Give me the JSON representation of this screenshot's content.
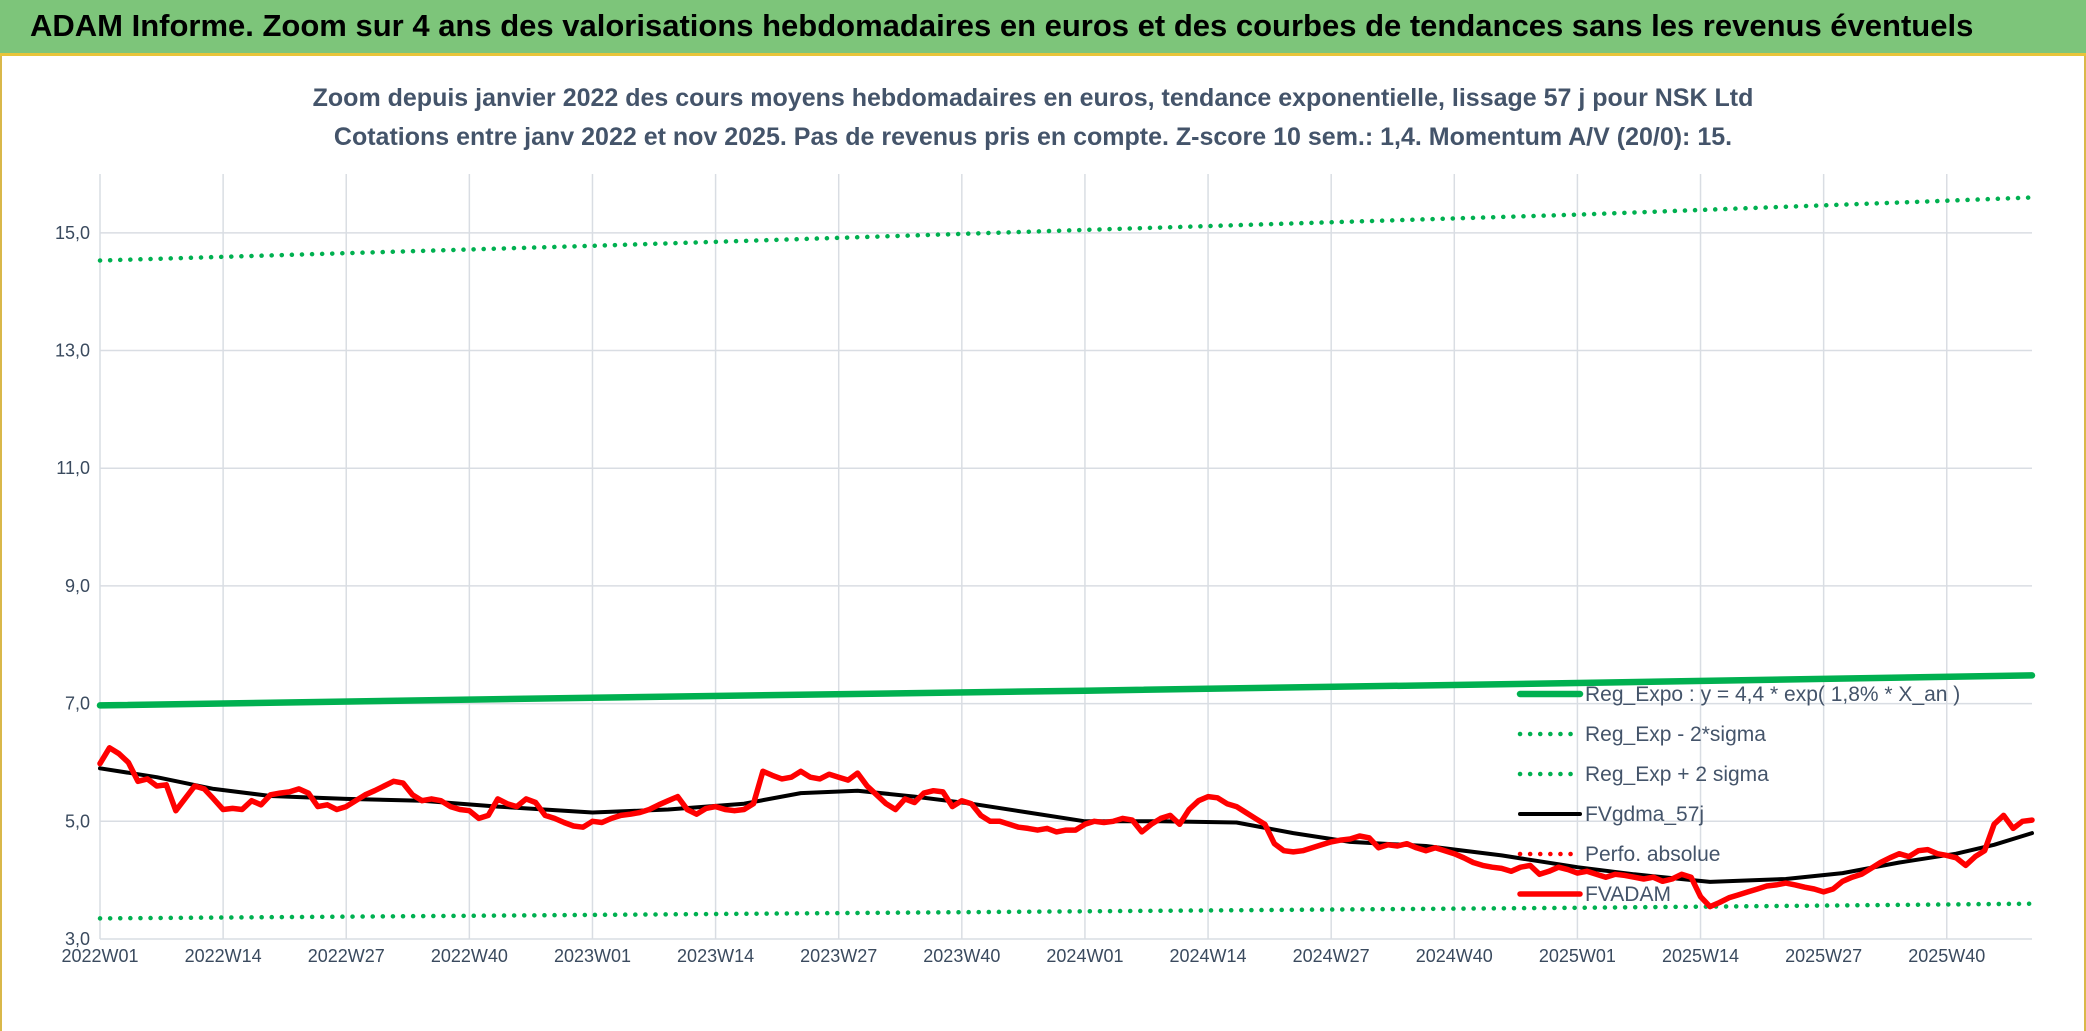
{
  "header": {
    "title": "ADAM Informe. Zoom sur 4 ans des valorisations hebdomadaires en euros et des courbes de tendances sans les revenus éventuels"
  },
  "colors": {
    "banner": "#7dc57a",
    "reg_expo": "#00b050",
    "fvgdma": "#000000",
    "fvadam": "#ff0000",
    "perfo": "#ff0000",
    "grid": "#d9dde3",
    "text": "#44546a"
  },
  "chart_data": {
    "type": "line",
    "title": "Zoom depuis janvier 2022 des cours moyens hebdomadaires en euros, tendance exponentielle, lissage 57 j pour NSK Ltd",
    "subtitle": "Cotations entre janv 2022 et nov 2025. Pas de revenus pris en compte. Z-score 10 sem.: 1,4. Momentum A/V (20/0): 15.",
    "xlabel": "",
    "ylabel": "",
    "ylim": [
      3.0,
      16.0
    ],
    "yticks": [
      "3,0",
      "5,0",
      "7,0",
      "9,0",
      "11,0",
      "13,0",
      "15,0"
    ],
    "ytick_values": [
      3,
      5,
      7,
      9,
      11,
      13,
      15
    ],
    "xticks": [
      "2022W01",
      "2022W14",
      "2022W27",
      "2022W40",
      "2023W01",
      "2023W14",
      "2023W27",
      "2023W40",
      "2024W01",
      "2024W14",
      "2024W27",
      "2024W40",
      "2025W01",
      "2025W14",
      "2025W27",
      "2025W40"
    ],
    "xtick_weeks": [
      0,
      13,
      26,
      39,
      52,
      65,
      78,
      91,
      104,
      117,
      130,
      143,
      156,
      169,
      182,
      195
    ],
    "weeks_total": 204,
    "grid": true,
    "legend_position": "right",
    "series": [
      {
        "name": "Reg_Expo : y = 4,4 * exp( 1,8% *  X_an )",
        "style": "solid-thick",
        "color": "#00b050",
        "points": [
          [
            0,
            6.97
          ],
          [
            52,
            7.1
          ],
          [
            104,
            7.22
          ],
          [
            156,
            7.35
          ],
          [
            204,
            7.48
          ]
        ]
      },
      {
        "name": "Reg_Exp - 2*sigma",
        "style": "dotted",
        "color": "#00b050",
        "points": [
          [
            0,
            3.35
          ],
          [
            52,
            3.41
          ],
          [
            104,
            3.47
          ],
          [
            156,
            3.53
          ],
          [
            204,
            3.6
          ]
        ]
      },
      {
        "name": "Reg_Exp + 2 sigma",
        "style": "dotted",
        "color": "#00b050",
        "points": [
          [
            0,
            14.53
          ],
          [
            52,
            14.78
          ],
          [
            104,
            15.05
          ],
          [
            156,
            15.31
          ],
          [
            204,
            15.6
          ]
        ]
      },
      {
        "name": "FVgdma_57j",
        "style": "solid",
        "color": "#000000",
        "points": [
          [
            0,
            5.9
          ],
          [
            6,
            5.75
          ],
          [
            12,
            5.55
          ],
          [
            18,
            5.43
          ],
          [
            26,
            5.38
          ],
          [
            34,
            5.35
          ],
          [
            42,
            5.25
          ],
          [
            52,
            5.15
          ],
          [
            60,
            5.2
          ],
          [
            68,
            5.3
          ],
          [
            74,
            5.48
          ],
          [
            80,
            5.52
          ],
          [
            86,
            5.42
          ],
          [
            92,
            5.3
          ],
          [
            98,
            5.15
          ],
          [
            104,
            5.0
          ],
          [
            112,
            5.0
          ],
          [
            120,
            4.98
          ],
          [
            126,
            4.8
          ],
          [
            132,
            4.65
          ],
          [
            140,
            4.58
          ],
          [
            148,
            4.42
          ],
          [
            156,
            4.22
          ],
          [
            162,
            4.1
          ],
          [
            170,
            3.97
          ],
          [
            178,
            4.02
          ],
          [
            184,
            4.12
          ],
          [
            190,
            4.3
          ],
          [
            196,
            4.45
          ],
          [
            200,
            4.6
          ],
          [
            204,
            4.8
          ]
        ]
      },
      {
        "name": "Perfo. absolue",
        "style": "dotted",
        "color": "#ff0000",
        "points": []
      },
      {
        "name": "FVADAM",
        "style": "solid-thick",
        "color": "#ff0000",
        "points": [
          [
            0,
            5.98
          ],
          [
            1,
            6.25
          ],
          [
            2,
            6.15
          ],
          [
            3,
            6.0
          ],
          [
            4,
            5.68
          ],
          [
            5,
            5.72
          ],
          [
            6,
            5.6
          ],
          [
            7,
            5.62
          ],
          [
            8,
            5.18
          ],
          [
            10,
            5.6
          ],
          [
            11,
            5.55
          ],
          [
            12,
            5.38
          ],
          [
            13,
            5.2
          ],
          [
            14,
            5.22
          ],
          [
            15,
            5.2
          ],
          [
            16,
            5.35
          ],
          [
            17,
            5.28
          ],
          [
            18,
            5.45
          ],
          [
            19,
            5.48
          ],
          [
            20,
            5.5
          ],
          [
            21,
            5.55
          ],
          [
            22,
            5.48
          ],
          [
            23,
            5.25
          ],
          [
            24,
            5.28
          ],
          [
            25,
            5.2
          ],
          [
            26,
            5.25
          ],
          [
            27,
            5.35
          ],
          [
            28,
            5.45
          ],
          [
            29,
            5.52
          ],
          [
            30,
            5.6
          ],
          [
            31,
            5.68
          ],
          [
            32,
            5.65
          ],
          [
            33,
            5.45
          ],
          [
            34,
            5.35
          ],
          [
            35,
            5.38
          ],
          [
            36,
            5.35
          ],
          [
            37,
            5.25
          ],
          [
            38,
            5.2
          ],
          [
            39,
            5.18
          ],
          [
            40,
            5.05
          ],
          [
            41,
            5.1
          ],
          [
            42,
            5.38
          ],
          [
            43,
            5.3
          ],
          [
            44,
            5.25
          ],
          [
            45,
            5.38
          ],
          [
            46,
            5.32
          ],
          [
            47,
            5.1
          ],
          [
            48,
            5.05
          ],
          [
            49,
            4.98
          ],
          [
            50,
            4.92
          ],
          [
            51,
            4.9
          ],
          [
            52,
            5.0
          ],
          [
            53,
            4.98
          ],
          [
            54,
            5.05
          ],
          [
            55,
            5.1
          ],
          [
            56,
            5.12
          ],
          [
            57,
            5.15
          ],
          [
            58,
            5.2
          ],
          [
            59,
            5.28
          ],
          [
            60,
            5.35
          ],
          [
            61,
            5.42
          ],
          [
            62,
            5.2
          ],
          [
            63,
            5.12
          ],
          [
            64,
            5.22
          ],
          [
            65,
            5.25
          ],
          [
            66,
            5.2
          ],
          [
            67,
            5.18
          ],
          [
            68,
            5.2
          ],
          [
            69,
            5.3
          ],
          [
            70,
            5.85
          ],
          [
            71,
            5.78
          ],
          [
            72,
            5.72
          ],
          [
            73,
            5.75
          ],
          [
            74,
            5.85
          ],
          [
            75,
            5.75
          ],
          [
            76,
            5.72
          ],
          [
            77,
            5.8
          ],
          [
            78,
            5.75
          ],
          [
            79,
            5.7
          ],
          [
            80,
            5.82
          ],
          [
            81,
            5.6
          ],
          [
            82,
            5.45
          ],
          [
            83,
            5.3
          ],
          [
            84,
            5.2
          ],
          [
            85,
            5.38
          ],
          [
            86,
            5.32
          ],
          [
            87,
            5.48
          ],
          [
            88,
            5.52
          ],
          [
            89,
            5.5
          ],
          [
            90,
            5.25
          ],
          [
            91,
            5.35
          ],
          [
            92,
            5.3
          ],
          [
            93,
            5.1
          ],
          [
            94,
            5.0
          ],
          [
            95,
            5.0
          ],
          [
            96,
            4.95
          ],
          [
            97,
            4.9
          ],
          [
            98,
            4.88
          ],
          [
            99,
            4.85
          ],
          [
            100,
            4.88
          ],
          [
            101,
            4.82
          ],
          [
            102,
            4.85
          ],
          [
            103,
            4.85
          ],
          [
            104,
            4.95
          ],
          [
            105,
            5.0
          ],
          [
            106,
            4.98
          ],
          [
            107,
            5.0
          ],
          [
            108,
            5.05
          ],
          [
            109,
            5.02
          ],
          [
            110,
            4.82
          ],
          [
            111,
            4.95
          ],
          [
            112,
            5.05
          ],
          [
            113,
            5.1
          ],
          [
            114,
            4.95
          ],
          [
            115,
            5.2
          ],
          [
            116,
            5.35
          ],
          [
            117,
            5.42
          ],
          [
            118,
            5.4
          ],
          [
            119,
            5.3
          ],
          [
            120,
            5.25
          ],
          [
            121,
            5.15
          ],
          [
            122,
            5.05
          ],
          [
            123,
            4.95
          ],
          [
            124,
            4.62
          ],
          [
            125,
            4.5
          ],
          [
            126,
            4.48
          ],
          [
            127,
            4.5
          ],
          [
            128,
            4.55
          ],
          [
            129,
            4.6
          ],
          [
            130,
            4.65
          ],
          [
            131,
            4.68
          ],
          [
            132,
            4.7
          ],
          [
            133,
            4.75
          ],
          [
            134,
            4.72
          ],
          [
            135,
            4.55
          ],
          [
            136,
            4.6
          ],
          [
            137,
            4.58
          ],
          [
            138,
            4.62
          ],
          [
            139,
            4.55
          ],
          [
            140,
            4.5
          ],
          [
            141,
            4.55
          ],
          [
            142,
            4.5
          ],
          [
            143,
            4.45
          ],
          [
            144,
            4.38
          ],
          [
            145,
            4.3
          ],
          [
            146,
            4.25
          ],
          [
            147,
            4.22
          ],
          [
            148,
            4.2
          ],
          [
            149,
            4.15
          ],
          [
            150,
            4.22
          ],
          [
            151,
            4.25
          ],
          [
            152,
            4.1
          ],
          [
            153,
            4.15
          ],
          [
            154,
            4.22
          ],
          [
            155,
            4.18
          ],
          [
            156,
            4.12
          ],
          [
            157,
            4.15
          ],
          [
            158,
            4.1
          ],
          [
            159,
            4.05
          ],
          [
            160,
            4.1
          ],
          [
            161,
            4.08
          ],
          [
            162,
            4.05
          ],
          [
            163,
            4.02
          ],
          [
            164,
            4.05
          ],
          [
            165,
            3.98
          ],
          [
            166,
            4.02
          ],
          [
            167,
            4.1
          ],
          [
            168,
            4.05
          ],
          [
            169,
            3.72
          ],
          [
            170,
            3.55
          ],
          [
            171,
            3.62
          ],
          [
            172,
            3.7
          ],
          [
            173,
            3.75
          ],
          [
            174,
            3.8
          ],
          [
            175,
            3.85
          ],
          [
            176,
            3.9
          ],
          [
            177,
            3.92
          ],
          [
            178,
            3.95
          ],
          [
            179,
            3.92
          ],
          [
            180,
            3.88
          ],
          [
            181,
            3.85
          ],
          [
            182,
            3.8
          ],
          [
            183,
            3.85
          ],
          [
            184,
            3.98
          ],
          [
            185,
            4.05
          ],
          [
            186,
            4.1
          ],
          [
            187,
            4.2
          ],
          [
            188,
            4.3
          ],
          [
            189,
            4.38
          ],
          [
            190,
            4.45
          ],
          [
            191,
            4.4
          ],
          [
            192,
            4.5
          ],
          [
            193,
            4.52
          ],
          [
            194,
            4.45
          ],
          [
            195,
            4.42
          ],
          [
            196,
            4.38
          ],
          [
            197,
            4.25
          ],
          [
            198,
            4.4
          ],
          [
            199,
            4.5
          ],
          [
            200,
            4.95
          ],
          [
            201,
            5.1
          ],
          [
            202,
            4.88
          ],
          [
            203,
            5.0
          ],
          [
            204,
            5.02
          ]
        ]
      }
    ]
  }
}
